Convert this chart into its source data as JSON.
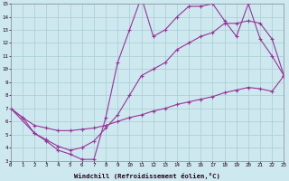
{
  "bg_color": "#cde8ee",
  "grid_color": "#aaccd4",
  "line_color": "#993399",
  "xlabel": "Windchill (Refroidissement éolien,°C)",
  "xlim": [
    0,
    23
  ],
  "ylim": [
    3,
    15
  ],
  "xticks": [
    0,
    1,
    2,
    3,
    4,
    5,
    6,
    7,
    8,
    9,
    10,
    11,
    12,
    13,
    14,
    15,
    16,
    17,
    18,
    19,
    20,
    21,
    22,
    23
  ],
  "yticks": [
    3,
    4,
    5,
    6,
    7,
    8,
    9,
    10,
    11,
    12,
    13,
    14,
    15
  ],
  "curve1_x": [
    0,
    1,
    2,
    3,
    4,
    5,
    6,
    7,
    8,
    9,
    10,
    11,
    12,
    13,
    14,
    15,
    16,
    17,
    18,
    19,
    20,
    21,
    22,
    23
  ],
  "curve1_y": [
    7.0,
    6.3,
    5.1,
    4.5,
    3.8,
    3.5,
    3.1,
    3.1,
    6.3,
    10.5,
    13.0,
    15.5,
    12.5,
    13.0,
    14.0,
    14.8,
    14.8,
    15.0,
    13.7,
    12.5,
    15.0,
    12.3,
    11.0,
    9.5
  ],
  "curve2_x": [
    0,
    2,
    3,
    4,
    5,
    6,
    7,
    8,
    9,
    10,
    11,
    12,
    13,
    14,
    15,
    16,
    17,
    18,
    19,
    20,
    21,
    22,
    23
  ],
  "curve2_y": [
    7.0,
    5.1,
    4.6,
    4.1,
    3.8,
    4.0,
    4.5,
    5.5,
    6.5,
    8.0,
    9.5,
    10.0,
    10.5,
    11.5,
    12.0,
    12.5,
    12.8,
    13.5,
    13.5,
    13.7,
    13.5,
    12.3,
    9.5
  ],
  "curve3_x": [
    0,
    1,
    2,
    3,
    4,
    5,
    6,
    7,
    8,
    9,
    10,
    11,
    12,
    13,
    14,
    15,
    16,
    17,
    18,
    19,
    20,
    21,
    22,
    23
  ],
  "curve3_y": [
    7.0,
    6.3,
    5.7,
    5.5,
    5.3,
    5.3,
    5.4,
    5.5,
    5.7,
    6.0,
    6.3,
    6.5,
    6.8,
    7.0,
    7.3,
    7.5,
    7.7,
    7.9,
    8.2,
    8.4,
    8.6,
    8.5,
    8.3,
    9.5
  ]
}
